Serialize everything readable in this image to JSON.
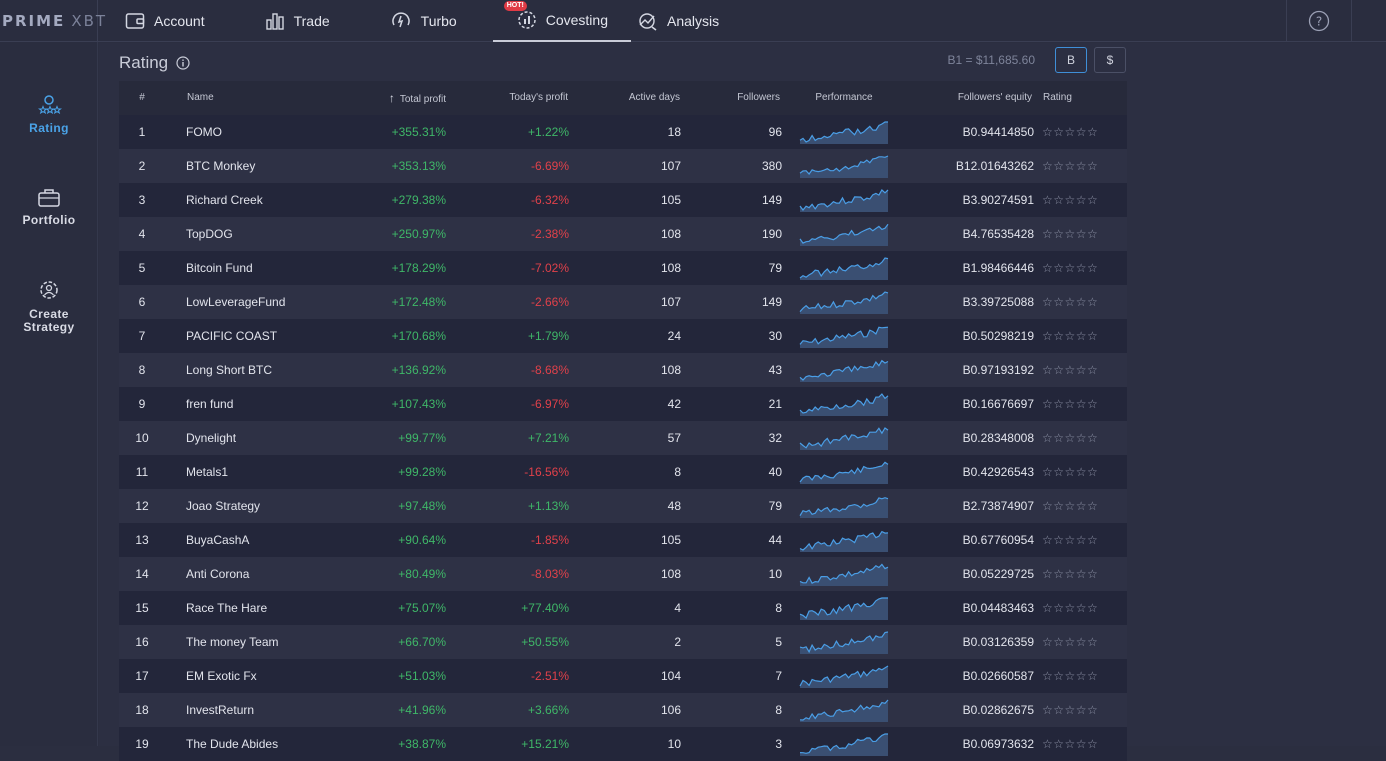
{
  "logo": {
    "brand_bold": "PRIME",
    "brand_thin": "XBT"
  },
  "nav": [
    {
      "label": "Account",
      "icon": "account-icon"
    },
    {
      "label": "Trade",
      "icon": "trade-icon"
    },
    {
      "label": "Turbo",
      "icon": "turbo-icon"
    },
    {
      "label": "Covesting",
      "icon": "covesting-icon",
      "badge": "HOT!",
      "active": true
    },
    {
      "label": "Analysis",
      "icon": "analysis-icon"
    }
  ],
  "help_icon": "help-icon",
  "sidebar": [
    {
      "label": "Rating",
      "icon": "rating-icon",
      "active": true
    },
    {
      "label": "Portfolio",
      "icon": "portfolio-icon"
    },
    {
      "label": "Create\nStrategy",
      "icon": "create-strategy-icon"
    }
  ],
  "page": {
    "title": "Rating",
    "rate": "B1 = $11,685.60",
    "currency_btc": "B",
    "currency_usd": "$"
  },
  "table": {
    "columns": [
      "#",
      "Name",
      "Total profit",
      "Today's profit",
      "Active days",
      "Followers",
      "Performance",
      "Followers' equity",
      "Rating"
    ],
    "rows": [
      {
        "idx": "1",
        "name": "FOMO",
        "total": "+355.31%",
        "today": "+1.22%",
        "days": "18",
        "followers": "96",
        "equity": "B0.94414850",
        "stars": "☆☆☆☆☆"
      },
      {
        "idx": "2",
        "name": "BTC Monkey",
        "total": "+353.13%",
        "today": "-6.69%",
        "days": "107",
        "followers": "380",
        "equity": "B12.01643262",
        "stars": "☆☆☆☆☆"
      },
      {
        "idx": "3",
        "name": "Richard Creek",
        "total": "+279.38%",
        "today": "-6.32%",
        "days": "105",
        "followers": "149",
        "equity": "B3.90274591",
        "stars": "☆☆☆☆☆"
      },
      {
        "idx": "4",
        "name": "TopDOG",
        "total": "+250.97%",
        "today": "-2.38%",
        "days": "108",
        "followers": "190",
        "equity": "B4.76535428",
        "stars": "☆☆☆☆☆"
      },
      {
        "idx": "5",
        "name": "Bitcoin Fund",
        "total": "+178.29%",
        "today": "-7.02%",
        "days": "108",
        "followers": "79",
        "equity": "B1.98466446",
        "stars": "☆☆☆☆☆"
      },
      {
        "idx": "6",
        "name": "LowLeverageFund",
        "total": "+172.48%",
        "today": "-2.66%",
        "days": "107",
        "followers": "149",
        "equity": "B3.39725088",
        "stars": "☆☆☆☆☆"
      },
      {
        "idx": "7",
        "name": "PACIFIC COAST",
        "total": "+170.68%",
        "today": "+1.79%",
        "days": "24",
        "followers": "30",
        "equity": "B0.50298219",
        "stars": "☆☆☆☆☆"
      },
      {
        "idx": "8",
        "name": "Long Short BTC",
        "total": "+136.92%",
        "today": "-8.68%",
        "days": "108",
        "followers": "43",
        "equity": "B0.97193192",
        "stars": "☆☆☆☆☆"
      },
      {
        "idx": "9",
        "name": "fren fund",
        "total": "+107.43%",
        "today": "-6.97%",
        "days": "42",
        "followers": "21",
        "equity": "B0.16676697",
        "stars": "☆☆☆☆☆"
      },
      {
        "idx": "10",
        "name": "Dynelight",
        "total": "+99.77%",
        "today": "+7.21%",
        "days": "57",
        "followers": "32",
        "equity": "B0.28348008",
        "stars": "☆☆☆☆☆"
      },
      {
        "idx": "11",
        "name": "Metals1",
        "total": "+99.28%",
        "today": "-16.56%",
        "days": "8",
        "followers": "40",
        "equity": "B0.42926543",
        "stars": "☆☆☆☆☆"
      },
      {
        "idx": "12",
        "name": "Joao Strategy",
        "total": "+97.48%",
        "today": "+1.13%",
        "days": "48",
        "followers": "79",
        "equity": "B2.73874907",
        "stars": "☆☆☆☆☆"
      },
      {
        "idx": "13",
        "name": "BuyaCashA",
        "total": "+90.64%",
        "today": "-1.85%",
        "days": "105",
        "followers": "44",
        "equity": "B0.67760954",
        "stars": "☆☆☆☆☆"
      },
      {
        "idx": "14",
        "name": "Anti Corona",
        "total": "+80.49%",
        "today": "-8.03%",
        "days": "108",
        "followers": "10",
        "equity": "B0.05229725",
        "stars": "☆☆☆☆☆"
      },
      {
        "idx": "15",
        "name": "Race The Hare",
        "total": "+75.07%",
        "today": "+77.40%",
        "days": "4",
        "followers": "8",
        "equity": "B0.04483463",
        "stars": "☆☆☆☆☆"
      },
      {
        "idx": "16",
        "name": "The money Team",
        "total": "+66.70%",
        "today": "+50.55%",
        "days": "2",
        "followers": "5",
        "equity": "B0.03126359",
        "stars": "☆☆☆☆☆"
      },
      {
        "idx": "17",
        "name": "EM Exotic Fx",
        "total": "+51.03%",
        "today": "-2.51%",
        "days": "104",
        "followers": "7",
        "equity": "B0.02660587",
        "stars": "☆☆☆☆☆"
      },
      {
        "idx": "18",
        "name": "InvestReturn",
        "total": "+41.96%",
        "today": "+3.66%",
        "days": "106",
        "followers": "8",
        "equity": "B0.02862675",
        "stars": "☆☆☆☆☆"
      },
      {
        "idx": "19",
        "name": "The Dude Abides",
        "total": "+38.87%",
        "today": "+15.21%",
        "days": "10",
        "followers": "3",
        "equity": "B0.06973632",
        "stars": "☆☆☆☆☆"
      }
    ]
  },
  "colors": {
    "positive": "#3fb768",
    "negative": "#e0414a",
    "accent": "#4aa3e8",
    "spark_line": "#4a9ee6",
    "spark_fill": "#3a4f72"
  }
}
